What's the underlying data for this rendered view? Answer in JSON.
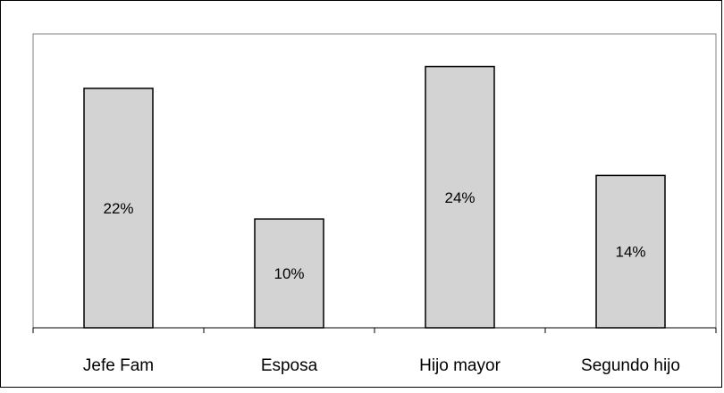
{
  "chart_data": {
    "type": "bar",
    "categories": [
      "Jefe Fam",
      "Esposa",
      "Hijo mayor",
      "Segundo hijo"
    ],
    "values": [
      22,
      10,
      24,
      14
    ],
    "data_labels": [
      "22%",
      "10%",
      "24%",
      "14%"
    ],
    "ylim": [
      0,
      27
    ],
    "grid": false,
    "legend": "none",
    "bar_color": "#d3d3d3",
    "bar_edge_color": "#000000",
    "plot_border_color": "#808080"
  }
}
